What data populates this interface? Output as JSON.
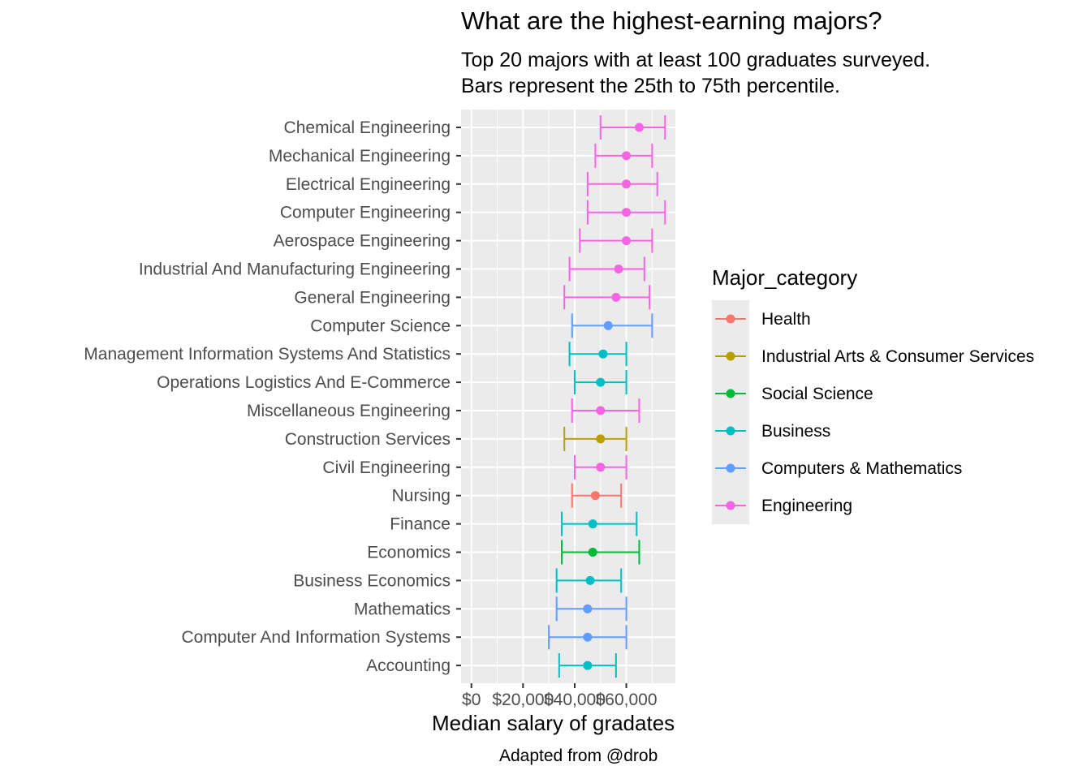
{
  "title": "What are the highest-earning majors?",
  "subtitle_line1": "Top 20 majors with at least 100 graduates surveyed.",
  "subtitle_line2": "Bars represent the 25th to 75th percentile.",
  "caption": "Adapted from @drob",
  "chart_data": {
    "type": "errorbar-dot",
    "title": "What are the highest-earning majors?",
    "xlabel": "Median salary of gradates",
    "ylabel": "",
    "xlim": [
      -4000,
      79000
    ],
    "x_ticks": [
      0,
      20000,
      40000,
      60000
    ],
    "x_tick_labels": [
      "$0",
      "$20,000",
      "$40,000",
      "$60,000"
    ],
    "grid": true,
    "legend_title": "Major_category",
    "legend_position": "right",
    "categories_colors": {
      "Health": "#F8766D",
      "Industrial Arts & Consumer Services": "#B79F00",
      "Social Science": "#00BA38",
      "Business": "#00BFC4",
      "Computers & Mathematics": "#619CFF",
      "Engineering": "#F564E3"
    },
    "legend_entries": [
      "Health",
      "Industrial Arts & Consumer Services",
      "Social Science",
      "Business",
      "Computers & Mathematics",
      "Engineering"
    ],
    "rows": [
      {
        "major": "Chemical Engineering",
        "category": "Engineering",
        "median": 65000,
        "p25": 50000,
        "p75": 75000
      },
      {
        "major": "Mechanical Engineering",
        "category": "Engineering",
        "median": 60000,
        "p25": 48000,
        "p75": 70000
      },
      {
        "major": "Electrical Engineering",
        "category": "Engineering",
        "median": 60000,
        "p25": 45000,
        "p75": 72000
      },
      {
        "major": "Computer Engineering",
        "category": "Engineering",
        "median": 60000,
        "p25": 45000,
        "p75": 75000
      },
      {
        "major": "Aerospace Engineering",
        "category": "Engineering",
        "median": 60000,
        "p25": 42000,
        "p75": 70000
      },
      {
        "major": "Industrial And Manufacturing Engineering",
        "category": "Engineering",
        "median": 57000,
        "p25": 38000,
        "p75": 67000
      },
      {
        "major": "General Engineering",
        "category": "Engineering",
        "median": 56000,
        "p25": 36000,
        "p75": 69000
      },
      {
        "major": "Computer Science",
        "category": "Computers & Mathematics",
        "median": 53000,
        "p25": 39000,
        "p75": 70000
      },
      {
        "major": "Management Information Systems And Statistics",
        "category": "Business",
        "median": 51000,
        "p25": 38000,
        "p75": 60000
      },
      {
        "major": "Operations Logistics And E-Commerce",
        "category": "Business",
        "median": 50000,
        "p25": 40000,
        "p75": 60000
      },
      {
        "major": "Miscellaneous Engineering",
        "category": "Engineering",
        "median": 50000,
        "p25": 39000,
        "p75": 65000
      },
      {
        "major": "Construction Services",
        "category": "Industrial Arts & Consumer Services",
        "median": 50000,
        "p25": 36000,
        "p75": 60000
      },
      {
        "major": "Civil Engineering",
        "category": "Engineering",
        "median": 50000,
        "p25": 40000,
        "p75": 60000
      },
      {
        "major": "Nursing",
        "category": "Health",
        "median": 48000,
        "p25": 39000,
        "p75": 58000
      },
      {
        "major": "Finance",
        "category": "Business",
        "median": 47000,
        "p25": 35000,
        "p75": 64000
      },
      {
        "major": "Economics",
        "category": "Social Science",
        "median": 47000,
        "p25": 35000,
        "p75": 65000
      },
      {
        "major": "Business Economics",
        "category": "Business",
        "median": 46000,
        "p25": 33000,
        "p75": 58000
      },
      {
        "major": "Mathematics",
        "category": "Computers & Mathematics",
        "median": 45000,
        "p25": 33000,
        "p75": 60000
      },
      {
        "major": "Computer And Information Systems",
        "category": "Computers & Mathematics",
        "median": 45000,
        "p25": 30000,
        "p75": 60000
      },
      {
        "major": "Accounting",
        "category": "Business",
        "median": 45000,
        "p25": 34000,
        "p75": 56000
      }
    ]
  }
}
